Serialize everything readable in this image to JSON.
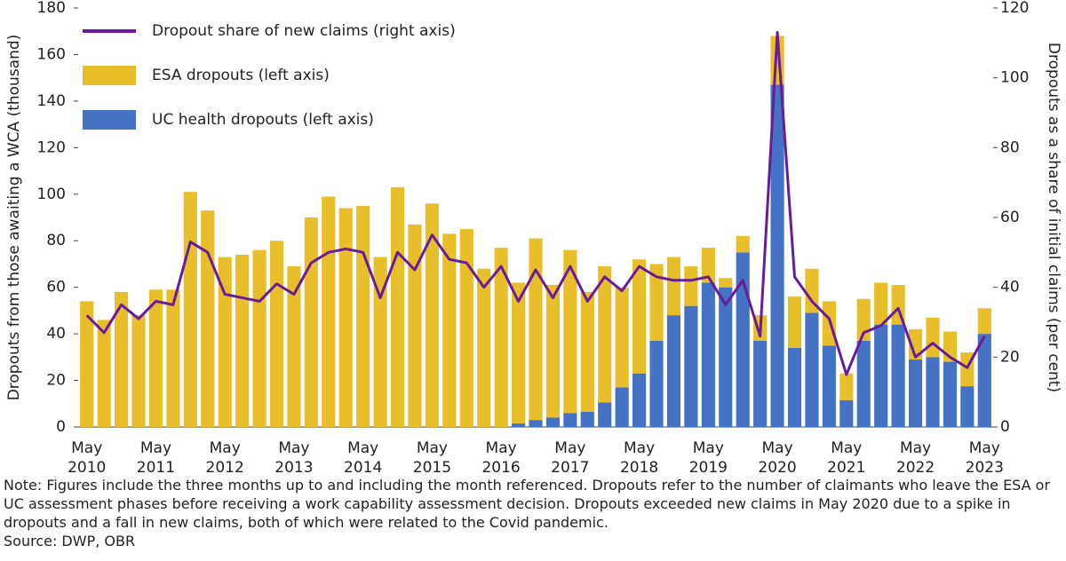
{
  "chart_data": {
    "type": "bar",
    "categories": [
      "May 2010",
      null,
      null,
      null,
      "May 2011",
      null,
      null,
      null,
      "May 2012",
      null,
      null,
      null,
      "May 2013",
      null,
      null,
      null,
      "May 2014",
      null,
      null,
      null,
      "May 2015",
      null,
      null,
      null,
      "May 2016",
      null,
      null,
      null,
      "May 2017",
      null,
      null,
      null,
      "May 2018",
      null,
      null,
      null,
      "May 2019",
      null,
      null,
      null,
      "May 2020",
      null,
      null,
      null,
      "May 2021",
      null,
      null,
      null,
      "May 2022",
      null,
      null,
      null,
      "May 2023"
    ],
    "series": [
      {
        "name": "UC health dropouts (left axis)",
        "type": "bar",
        "color": "#4472c4",
        "values": [
          null,
          null,
          null,
          null,
          null,
          null,
          null,
          null,
          null,
          null,
          null,
          null,
          null,
          null,
          null,
          null,
          null,
          null,
          null,
          null,
          null,
          null,
          null,
          null,
          null,
          1.5,
          3,
          4,
          6,
          6.5,
          10.5,
          17,
          23,
          37,
          48,
          52,
          62,
          60,
          75,
          37,
          147,
          34,
          49,
          35,
          11.5,
          37,
          44,
          44,
          29,
          30,
          28,
          17.5,
          40
        ]
      },
      {
        "name": "ESA dropouts (left axis)",
        "type": "bar",
        "color": "#e8be2a",
        "values": [
          54,
          46,
          58,
          48,
          59,
          59,
          101,
          93,
          73,
          74,
          76,
          80,
          69,
          90,
          99,
          94,
          95,
          73,
          103,
          87,
          96,
          83,
          85,
          68,
          77,
          60.5,
          78,
          57,
          70,
          51.5,
          58.5,
          43,
          49,
          33,
          25,
          17,
          15,
          4,
          7,
          11,
          21,
          22,
          19,
          19,
          11.5,
          18,
          18,
          17,
          13,
          17,
          13,
          14.5,
          11
        ]
      },
      {
        "name": "Dropout share of new claims (right axis)",
        "type": "line",
        "axis": "y2",
        "color": "#6a1b9a",
        "values": [
          32,
          27,
          35,
          31,
          36,
          35,
          53,
          50,
          38,
          37,
          36,
          41,
          38,
          47,
          50,
          51,
          50,
          37,
          50,
          45,
          55,
          48,
          47,
          40,
          46,
          36,
          45,
          37,
          46,
          36,
          43,
          39,
          46,
          43,
          42,
          42,
          43,
          35,
          42,
          26,
          113,
          43,
          36,
          31,
          15,
          27,
          29,
          34,
          20,
          24,
          20,
          17,
          26
        ]
      }
    ],
    "y_label": "Dropouts from those awaiting a WCA (thousand)",
    "y2_label": "Dropouts as a share of initial claims (per cent)",
    "ylim": [
      0,
      180
    ],
    "yticks": [
      0,
      20,
      40,
      60,
      80,
      100,
      120,
      140,
      160,
      180
    ],
    "y2lim": [
      0,
      120
    ],
    "y2ticks": [
      0,
      20,
      40,
      60,
      80,
      100,
      120
    ],
    "legend": "top-left",
    "note": "Note: Figures include the three months up to and including the month referenced. Dropouts refer to the number of claimants who leave the ESA or UC assessment phases before receiving a work capability assessment decision. Dropouts exceeded new claims in May 2020 due to a spike in dropouts and a fall in new claims, both of which were related to the Covid pandemic.",
    "source": "Source: DWP, OBR"
  }
}
